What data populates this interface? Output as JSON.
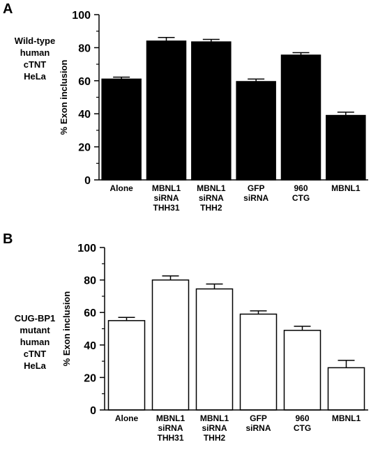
{
  "panels": [
    {
      "letter": "A",
      "side_label": [
        "Wild-type",
        "human",
        "cTNT",
        "HeLa"
      ]
    },
    {
      "letter": "B",
      "side_label": [
        "CUG-BP1",
        "mutant",
        "human",
        "cTNT",
        "HeLa"
      ]
    }
  ],
  "chart_data": [
    {
      "type": "bar",
      "categories": [
        [
          "Alone"
        ],
        [
          "MBNL1",
          "siRNA",
          "THH31"
        ],
        [
          "MBNL1",
          "siRNA",
          "THH2"
        ],
        [
          "GFP",
          "siRNA"
        ],
        [
          "960",
          "CTG"
        ],
        [
          "MBNL1"
        ]
      ],
      "values": [
        61,
        84,
        83.5,
        59.5,
        75.5,
        39
      ],
      "errors": [
        1.2,
        2.2,
        1.5,
        1.5,
        1.5,
        2
      ],
      "bar_fill": "#000000",
      "ylabel": "% Exon inclusion",
      "ylim": [
        0,
        100
      ],
      "yticks": [
        0,
        20,
        40,
        60,
        80,
        100
      ],
      "minor_ticks": true
    },
    {
      "type": "bar",
      "categories": [
        [
          "Alone"
        ],
        [
          "MBNL1",
          "siRNA",
          "THH31"
        ],
        [
          "MBNL1",
          "siRNA",
          "THH2"
        ],
        [
          "GFP",
          "siRNA"
        ],
        [
          "960",
          "CTG"
        ],
        [
          "MBNL1"
        ]
      ],
      "values": [
        55,
        80,
        74.5,
        59,
        49,
        26
      ],
      "errors": [
        2,
        2.5,
        3,
        2,
        2.5,
        4.5
      ],
      "bar_fill": "#ffffff",
      "ylabel": "% Exon inclusion",
      "ylim": [
        0,
        100
      ],
      "yticks": [
        0,
        20,
        40,
        60,
        80,
        100
      ],
      "minor_ticks": true
    }
  ]
}
